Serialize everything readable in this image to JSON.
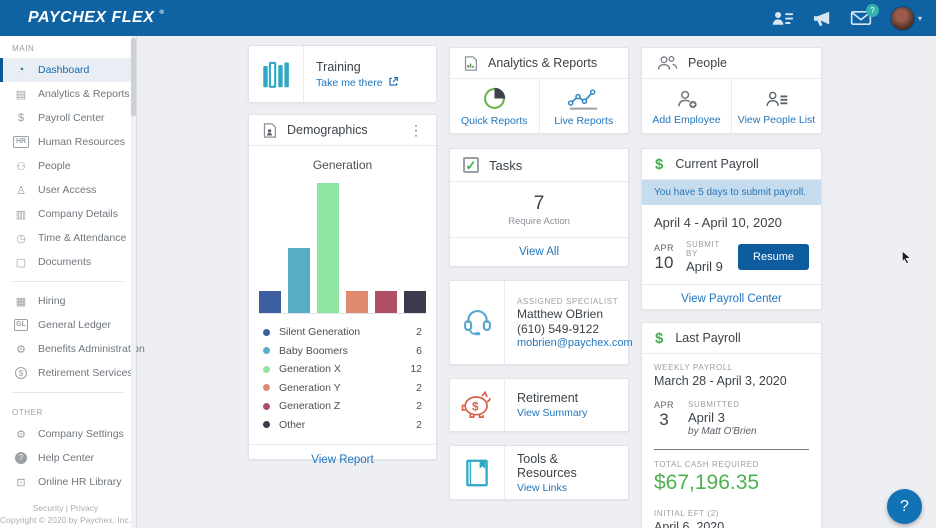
{
  "topbar": {
    "logo_main": "PAYCHEX",
    "logo_sub": "FLEX",
    "logo_reg": "®",
    "mail_badge": "?"
  },
  "sidebar": {
    "main_label": "MAIN",
    "other_label": "OTHER",
    "items_primary": [
      {
        "label": "Dashboard",
        "glyph": "◔",
        "selected": true
      },
      {
        "label": "Analytics & Reports",
        "glyph": "▤"
      },
      {
        "label": "Payroll Center",
        "glyph": "$"
      },
      {
        "label": "Human Resources",
        "glyph": "HR",
        "cls": "boxed"
      },
      {
        "label": "People",
        "glyph": "⚇"
      },
      {
        "label": "User Access",
        "glyph": "♙"
      },
      {
        "label": "Company Details",
        "glyph": "▥"
      },
      {
        "label": "Time & Attendance",
        "glyph": "◷"
      },
      {
        "label": "Documents",
        "glyph": "▢"
      }
    ],
    "items_secondary": [
      {
        "label": "Hiring",
        "glyph": "▦"
      },
      {
        "label": "General Ledger",
        "glyph": "GL",
        "cls": "boxed"
      },
      {
        "label": "Benefits Administration",
        "glyph": "⚙"
      },
      {
        "label": "Retirement Services",
        "glyph": "$",
        "cls": "coin"
      }
    ],
    "items_other": [
      {
        "label": "Company Settings",
        "glyph": "⚙"
      },
      {
        "label": "Help Center",
        "glyph": "?",
        "cls": "circled"
      },
      {
        "label": "Online HR Library",
        "glyph": "⊡"
      }
    ],
    "footer_links": "Security | Privacy",
    "copyright": "Copyright © 2020 by Paychex, Inc."
  },
  "cards": {
    "training": {
      "title": "Training",
      "link": "Take me there"
    },
    "demographics": {
      "title": "Demographics",
      "kebab": "⋮",
      "view_report": "View Report"
    },
    "analytics": {
      "title": "Analytics & Reports",
      "quick": "Quick Reports",
      "live": "Live Reports"
    },
    "tasks": {
      "title": "Tasks",
      "check": "✓",
      "count": "7",
      "subtitle": "Require Action",
      "view_all": "View All"
    },
    "specialist": {
      "label": "ASSIGNED SPECIALIST",
      "name": "Matthew OBrien",
      "phone": "(610) 549-9122",
      "email": "mobrien@paychex.com"
    },
    "retirement": {
      "title": "Retirement",
      "link": "View Summary"
    },
    "tools": {
      "title": "Tools & Resources",
      "link": "View Links"
    },
    "people": {
      "title": "People",
      "add": "Add Employee",
      "view": "View People List"
    },
    "current_payroll": {
      "dollar": "$",
      "title": "Current Payroll",
      "banner": "You have 5 days to submit payroll.",
      "period": "April 4 - April 10, 2020",
      "cal_month": "APR",
      "cal_day": "10",
      "submit_by_label": "SUBMIT BY",
      "submit_by": "April 9",
      "resume": "Resume",
      "view_center": "View Payroll Center"
    },
    "last_payroll": {
      "dollar": "$",
      "title": "Last Payroll",
      "type_label": "WEEKLY PAYROLL",
      "period": "March 28 - April 3, 2020",
      "cal_month": "APR",
      "cal_day": "3",
      "submitted_label": "SUBMITTED",
      "submitted_date": "April 3",
      "submitted_by": "by  Matt O'Brien",
      "total_label": "TOTAL CASH REQUIRED",
      "total": "$67,196.35",
      "eft_label": "INITIAL EFT (2)",
      "eft_date": "April 6, 2020"
    }
  },
  "chart_data": {
    "type": "bar",
    "title": "Generation",
    "categories": [
      "Silent Generation",
      "Baby Boomers",
      "Generation X",
      "Generation Y",
      "Generation Z",
      "Other"
    ],
    "values": [
      2,
      6,
      12,
      2,
      2,
      2
    ],
    "colors": [
      "#3e5ea1",
      "#57adc6",
      "#8fe3a3",
      "#e0896f",
      "#b04f66",
      "#3e394d"
    ],
    "ylim": [
      0,
      12
    ],
    "grid": false,
    "legend_position": "bottom"
  },
  "help_label": "?",
  "colors": {
    "accent_blue": "#2176bd",
    "green": "#3faf4c",
    "topbar": "#0f63a3",
    "banner_bg": "#c5dbee",
    "button_bg": "#0d5c9e"
  }
}
